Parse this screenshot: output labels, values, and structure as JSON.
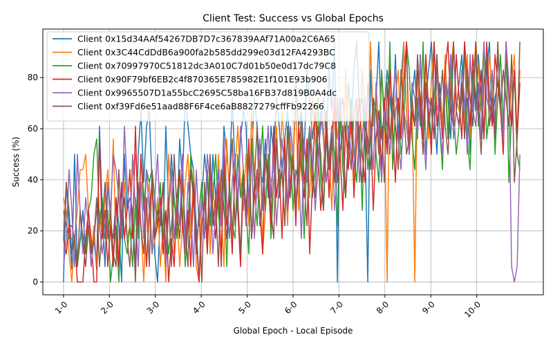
{
  "chart_data": {
    "type": "line",
    "title": "Client Test: Success vs Global Epochs",
    "xlabel": "Global Epoch - Local Episode",
    "ylabel": "Success (%)",
    "xlim": [
      -0.45,
      10.45
    ],
    "ylim": [
      -5,
      99
    ],
    "x_ticks": [
      {
        "label": "1-0",
        "value": 0
      },
      {
        "label": "2-0",
        "value": 1
      },
      {
        "label": "3-0",
        "value": 2
      },
      {
        "label": "4-0",
        "value": 3
      },
      {
        "label": "5-0",
        "value": 4
      },
      {
        "label": "6-0",
        "value": 5
      },
      {
        "label": "7-0",
        "value": 6
      },
      {
        "label": "8-0",
        "value": 7
      },
      {
        "label": "9-0",
        "value": 8
      },
      {
        "label": "10-0",
        "value": 9
      }
    ],
    "y_ticks": [
      0,
      20,
      40,
      60,
      80
    ],
    "grid": true,
    "legend_position": "top-left",
    "series": [
      {
        "name": "Client 0x15d34AAf54267DB7D7c367839AAf71A00a2C6A65",
        "color": "#1f77b4",
        "values": [
          0,
          39,
          22,
          5,
          50,
          6,
          16,
          28,
          11,
          22,
          6,
          17,
          5,
          61,
          28,
          6,
          39,
          22,
          17,
          33,
          22,
          0,
          50,
          28,
          33,
          28,
          6,
          50,
          67,
          39,
          61,
          67,
          39,
          11,
          0,
          28,
          17,
          61,
          28,
          50,
          33,
          22,
          56,
          39,
          72,
          61,
          50,
          44,
          22,
          0,
          33,
          50,
          39,
          22,
          50,
          33,
          44,
          28,
          61,
          50,
          39,
          72,
          44,
          33,
          56,
          67,
          61,
          28,
          50,
          72,
          61,
          44,
          39,
          56,
          33,
          61,
          50,
          72,
          61,
          44,
          56,
          67,
          50,
          44,
          78,
          61,
          67,
          50,
          83,
          72,
          56,
          67,
          50,
          61,
          72,
          56,
          83,
          67,
          94,
          0,
          67,
          72,
          56,
          78,
          61,
          83,
          94,
          67,
          72,
          56,
          0,
          83,
          61,
          72,
          94,
          56,
          67,
          83,
          72,
          61,
          89,
          56,
          78,
          94,
          67,
          50,
          72,
          83,
          61,
          89,
          56,
          72,
          83,
          94,
          67,
          50,
          78,
          61,
          83,
          72,
          56,
          94,
          67,
          78,
          89,
          61,
          72,
          50,
          83,
          67,
          89,
          72,
          56,
          83,
          94,
          61,
          72,
          78,
          67,
          56,
          89,
          72,
          61,
          83,
          50,
          44
        ]
      },
      {
        "name": "Client 0x3C44CdDdB6a900fa2b585dd299e03d12FA4293BC",
        "color": "#ff7f0e",
        "values": [
          33,
          28,
          11,
          0,
          17,
          28,
          44,
          44,
          50,
          28,
          11,
          22,
          6,
          28,
          17,
          33,
          44,
          22,
          56,
          11,
          6,
          28,
          39,
          17,
          22,
          44,
          50,
          33,
          22,
          0,
          28,
          39,
          11,
          17,
          33,
          6,
          22,
          0,
          50,
          33,
          11,
          28,
          6,
          22,
          39,
          50,
          17,
          44,
          6,
          0,
          33,
          28,
          44,
          11,
          39,
          22,
          50,
          28,
          6,
          56,
          33,
          17,
          44,
          61,
          39,
          28,
          50,
          22,
          67,
          44,
          33,
          56,
          11,
          28,
          50,
          39,
          44,
          61,
          33,
          67,
          50,
          22,
          56,
          44,
          72,
          28,
          61,
          39,
          50,
          33,
          72,
          56,
          44,
          67,
          61,
          39,
          50,
          28,
          72,
          56,
          67,
          44,
          83,
          50,
          61,
          39,
          72,
          56,
          83,
          67,
          50,
          94,
          61,
          72,
          56,
          83,
          67,
          0,
          89,
          61,
          72,
          83,
          56,
          94,
          67,
          50,
          72,
          0,
          83,
          61,
          72,
          89,
          56,
          78,
          94,
          67,
          72,
          61,
          89,
          56,
          83,
          94,
          72,
          67,
          78,
          61,
          89,
          56,
          72,
          94,
          83,
          67,
          61,
          78,
          89,
          72,
          56,
          94,
          67,
          83,
          72,
          61,
          78,
          89,
          56,
          83
        ]
      },
      {
        "name": "Client 0x70997970C51812dc3A010C7d01b50e0d17dc79C8",
        "color": "#2ca02c",
        "values": [
          28,
          22,
          17,
          17,
          17,
          6,
          17,
          17,
          11,
          28,
          33,
          50,
          56,
          22,
          33,
          17,
          28,
          0,
          11,
          22,
          0,
          28,
          17,
          11,
          22,
          6,
          33,
          17,
          50,
          28,
          44,
          39,
          44,
          33,
          22,
          39,
          17,
          28,
          11,
          22,
          33,
          17,
          44,
          28,
          6,
          22,
          50,
          33,
          11,
          28,
          39,
          17,
          44,
          22,
          33,
          50,
          28,
          11,
          44,
          6,
          39,
          22,
          17,
          50,
          33,
          44,
          28,
          11,
          56,
          39,
          22,
          44,
          61,
          28,
          50,
          17,
          39,
          56,
          33,
          44,
          22,
          61,
          50,
          28,
          44,
          39,
          56,
          17,
          50,
          61,
          33,
          44,
          72,
          39,
          28,
          56,
          44,
          61,
          50,
          22,
          67,
          44,
          33,
          56,
          72,
          50,
          39,
          61,
          28,
          67,
          44,
          56,
          72,
          50,
          39,
          83,
          61,
          56,
          94,
          44,
          67,
          72,
          50,
          61,
          94,
          83,
          56,
          44,
          72,
          61,
          94,
          50,
          67,
          56,
          72,
          89,
          61,
          44,
          78,
          56,
          89,
          67,
          50,
          61,
          72,
          94,
          56,
          44,
          78,
          89,
          61,
          72,
          94,
          56,
          67,
          83,
          50,
          72,
          89,
          61,
          94,
          39,
          67,
          83,
          50,
          44
        ]
      },
      {
        "name": "Client 0x90F79bf6EB2c4f870365E785982E1f101E93b906",
        "color": "#d62728",
        "values": [
          17,
          11,
          22,
          22,
          17,
          0,
          0,
          0,
          17,
          28,
          17,
          0,
          0,
          56,
          17,
          28,
          6,
          22,
          6,
          33,
          6,
          39,
          17,
          28,
          44,
          17,
          61,
          22,
          50,
          33,
          6,
          28,
          39,
          17,
          22,
          33,
          11,
          28,
          0,
          17,
          6,
          33,
          44,
          22,
          11,
          28,
          6,
          39,
          17,
          0,
          22,
          33,
          11,
          44,
          28,
          17,
          39,
          6,
          50,
          22,
          33,
          11,
          44,
          28,
          6,
          39,
          22,
          56,
          17,
          33,
          44,
          28,
          11,
          50,
          39,
          22,
          61,
          33,
          44,
          17,
          56,
          28,
          39,
          50,
          22,
          61,
          44,
          33,
          56,
          11,
          39,
          67,
          50,
          28,
          44,
          61,
          33,
          56,
          72,
          39,
          50,
          28,
          61,
          44,
          67,
          33,
          56,
          72,
          50,
          39,
          78,
          61,
          28,
          56,
          67,
          44,
          72,
          50,
          83,
          61,
          39,
          72,
          56,
          78,
          94,
          50,
          67,
          61,
          83,
          72,
          56,
          89,
          67,
          50,
          94,
          61,
          72,
          56,
          83,
          94,
          67,
          61,
          89,
          72,
          56,
          94,
          78,
          61,
          89,
          72,
          67,
          83,
          56,
          94,
          72,
          61,
          89,
          78,
          67,
          50,
          94,
          72,
          61,
          83,
          56,
          78
        ]
      },
      {
        "name": "Client 0x9965507D1a55bcC2695C58ba16FB37d819B0A4dc",
        "color": "#9467bd",
        "values": [
          6,
          17,
          44,
          28,
          6,
          50,
          28,
          11,
          33,
          22,
          6,
          17,
          28,
          22,
          11,
          22,
          39,
          28,
          50,
          44,
          33,
          17,
          61,
          39,
          22,
          50,
          28,
          6,
          39,
          17,
          44,
          28,
          11,
          33,
          50,
          22,
          39,
          6,
          28,
          44,
          17,
          33,
          22,
          50,
          11,
          39,
          28,
          6,
          44,
          22,
          33,
          17,
          50,
          39,
          11,
          28,
          44,
          22,
          56,
          33,
          17,
          39,
          50,
          28,
          61,
          44,
          22,
          33,
          50,
          17,
          39,
          56,
          28,
          44,
          61,
          33,
          50,
          22,
          39,
          56,
          44,
          28,
          61,
          50,
          33,
          44,
          17,
          56,
          39,
          61,
          50,
          28,
          44,
          67,
          56,
          39,
          50,
          61,
          28,
          44,
          72,
          56,
          33,
          61,
          50,
          44,
          67,
          39,
          56,
          72,
          50,
          61,
          44,
          78,
          56,
          39,
          67,
          61,
          50,
          72,
          83,
          56,
          44,
          67,
          61,
          50,
          78,
          72,
          56,
          89,
          61,
          44,
          72,
          67,
          56,
          83,
          61,
          50,
          78,
          72,
          89,
          56,
          67,
          61,
          83,
          72,
          50,
          89,
          67,
          61,
          78,
          56,
          94,
          72,
          67,
          83,
          61,
          89,
          72,
          56,
          94,
          78,
          6,
          0,
          6,
          50
        ]
      },
      {
        "name": "Client 0xf39Fd6e51aad88F6F4ce6aB8827279cffFb92266",
        "color": "#8c564b",
        "values": [
          17,
          39,
          28,
          11,
          17,
          6,
          28,
          17,
          6,
          22,
          11,
          17,
          33,
          6,
          22,
          39,
          17,
          28,
          11,
          6,
          44,
          22,
          33,
          17,
          6,
          28,
          0,
          39,
          22,
          11,
          33,
          6,
          44,
          17,
          28,
          22,
          39,
          11,
          33,
          6,
          50,
          28,
          17,
          39,
          22,
          6,
          44,
          33,
          11,
          28,
          0,
          39,
          17,
          50,
          22,
          33,
          6,
          44,
          28,
          17,
          39,
          56,
          22,
          33,
          11,
          44,
          28,
          50,
          17,
          39,
          61,
          22,
          33,
          50,
          44,
          28,
          17,
          56,
          39,
          44,
          22,
          61,
          33,
          50,
          28,
          44,
          67,
          39,
          22,
          56,
          44,
          33,
          61,
          50,
          28,
          67,
          44,
          56,
          39,
          72,
          50,
          61,
          33,
          56,
          44,
          67,
          72,
          50,
          39,
          61,
          56,
          44,
          72,
          67,
          50,
          61,
          39,
          78,
          56,
          72,
          61,
          44,
          83,
          67,
          50,
          56,
          72,
          61,
          89,
          67,
          50,
          78,
          61,
          72,
          56,
          89,
          67,
          83,
          61,
          50,
          72,
          94,
          67,
          61,
          78,
          56,
          83,
          72,
          61,
          94,
          67,
          50,
          78,
          89,
          61,
          72,
          56,
          94,
          67,
          83,
          72,
          61,
          89,
          39,
          56,
          94
        ]
      }
    ]
  }
}
